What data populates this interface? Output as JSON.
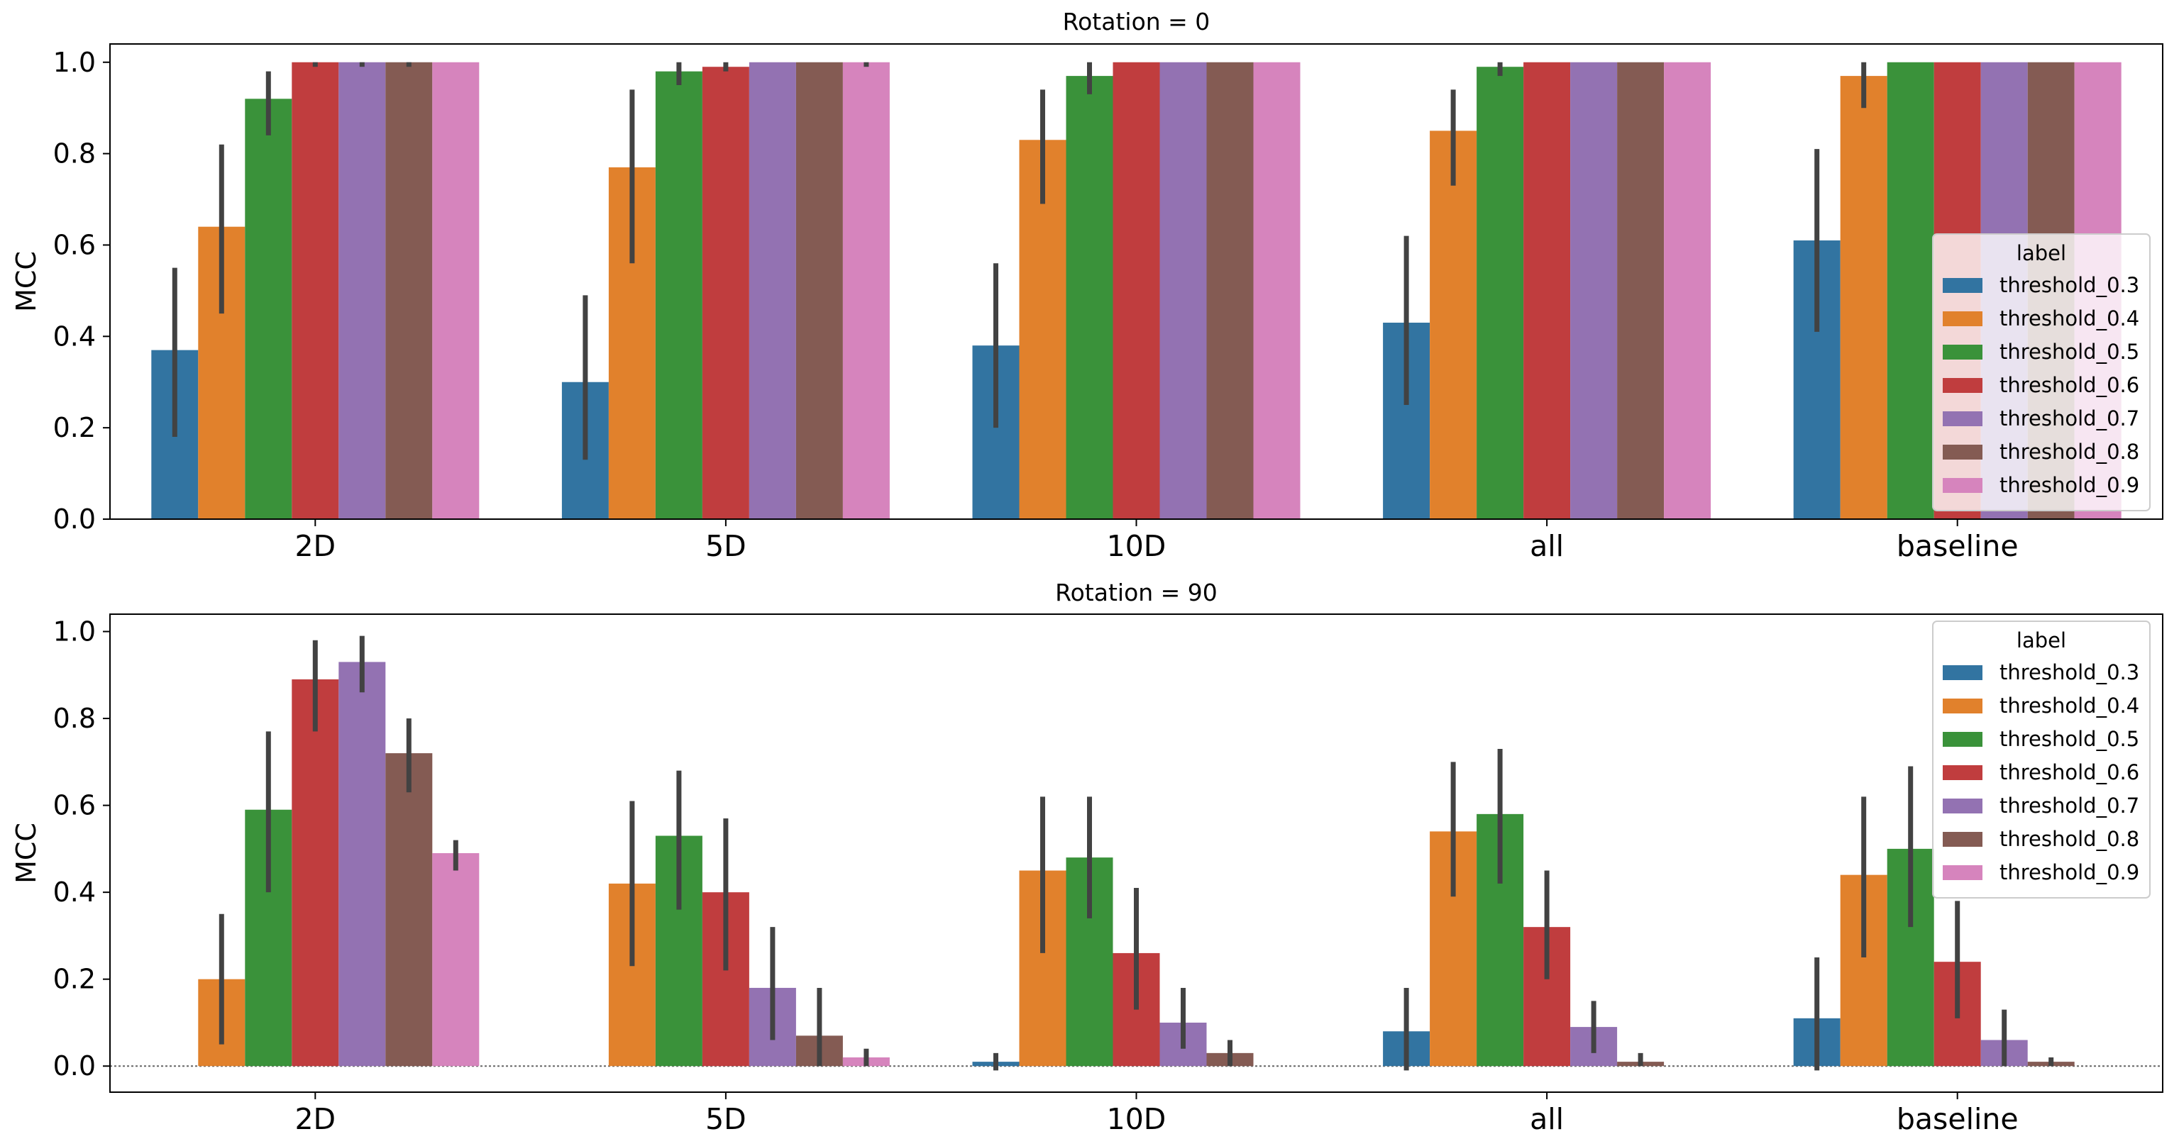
{
  "chart_data": [
    {
      "type": "bar",
      "title": "Rotation = 0",
      "xlabel": "",
      "ylabel": "MCC",
      "ylim": [
        0.0,
        1.04
      ],
      "yticks": [
        "0.0",
        "0.2",
        "0.4",
        "0.6",
        "0.8",
        "1.0"
      ],
      "categories": [
        "2D",
        "5D",
        "10D",
        "all",
        "baseline"
      ],
      "legend": {
        "title": "label",
        "placement": "center-right"
      },
      "series": [
        {
          "name": "threshold_0.3",
          "values": [
            0.37,
            0.3,
            0.38,
            0.43,
            0.61
          ],
          "err_low": [
            0.18,
            0.13,
            0.2,
            0.25,
            0.41
          ],
          "err_high": [
            0.55,
            0.49,
            0.56,
            0.62,
            0.81
          ]
        },
        {
          "name": "threshold_0.4",
          "values": [
            0.64,
            0.77,
            0.83,
            0.85,
            0.97
          ],
          "err_low": [
            0.45,
            0.56,
            0.69,
            0.73,
            0.9
          ],
          "err_high": [
            0.82,
            0.94,
            0.94,
            0.94,
            1.0
          ]
        },
        {
          "name": "threshold_0.5",
          "values": [
            0.92,
            0.98,
            0.97,
            0.99,
            1.0
          ],
          "err_low": [
            0.84,
            0.95,
            0.93,
            0.97,
            1.0
          ],
          "err_high": [
            0.98,
            1.0,
            1.0,
            1.0,
            1.0
          ]
        },
        {
          "name": "threshold_0.6",
          "values": [
            1.0,
            0.99,
            1.0,
            1.0,
            1.0
          ],
          "err_low": [
            0.99,
            0.98,
            1.0,
            1.0,
            1.0
          ],
          "err_high": [
            1.0,
            1.0,
            1.0,
            1.0,
            1.0
          ]
        },
        {
          "name": "threshold_0.7",
          "values": [
            1.0,
            1.0,
            1.0,
            1.0,
            1.0
          ],
          "err_low": [
            0.99,
            1.0,
            1.0,
            1.0,
            1.0
          ],
          "err_high": [
            1.0,
            1.0,
            1.0,
            1.0,
            1.0
          ]
        },
        {
          "name": "threshold_0.8",
          "values": [
            1.0,
            1.0,
            1.0,
            1.0,
            1.0
          ],
          "err_low": [
            0.99,
            1.0,
            1.0,
            1.0,
            1.0
          ],
          "err_high": [
            1.0,
            1.0,
            1.0,
            1.0,
            1.0
          ]
        },
        {
          "name": "threshold_0.9",
          "values": [
            1.0,
            1.0,
            1.0,
            1.0,
            1.0
          ],
          "err_low": [
            1.0,
            0.99,
            1.0,
            1.0,
            1.0
          ],
          "err_high": [
            1.0,
            1.0,
            1.0,
            1.0,
            1.0
          ]
        }
      ]
    },
    {
      "type": "bar",
      "title": "Rotation = 90",
      "xlabel": "",
      "ylabel": "MCC",
      "ylim": [
        -0.06,
        1.04
      ],
      "yticks": [
        "0.0",
        "0.2",
        "0.4",
        "0.6",
        "0.8",
        "1.0"
      ],
      "zero_line": true,
      "categories": [
        "2D",
        "5D",
        "10D",
        "all",
        "baseline"
      ],
      "legend": {
        "title": "label",
        "placement": "top-right"
      },
      "series": [
        {
          "name": "threshold_0.3",
          "values": [
            0.0,
            0.0,
            0.01,
            0.08,
            0.11
          ],
          "err_low": [
            0.0,
            0.0,
            -0.01,
            -0.01,
            -0.01
          ],
          "err_high": [
            0.0,
            0.0,
            0.03,
            0.18,
            0.25
          ]
        },
        {
          "name": "threshold_0.4",
          "values": [
            0.2,
            0.42,
            0.45,
            0.54,
            0.44
          ],
          "err_low": [
            0.05,
            0.23,
            0.26,
            0.39,
            0.25
          ],
          "err_high": [
            0.35,
            0.61,
            0.62,
            0.7,
            0.62
          ]
        },
        {
          "name": "threshold_0.5",
          "values": [
            0.59,
            0.53,
            0.48,
            0.58,
            0.5
          ],
          "err_low": [
            0.4,
            0.36,
            0.34,
            0.42,
            0.32
          ],
          "err_high": [
            0.77,
            0.68,
            0.62,
            0.73,
            0.69
          ]
        },
        {
          "name": "threshold_0.6",
          "values": [
            0.89,
            0.4,
            0.26,
            0.32,
            0.24
          ],
          "err_low": [
            0.77,
            0.22,
            0.13,
            0.2,
            0.11
          ],
          "err_high": [
            0.98,
            0.57,
            0.41,
            0.45,
            0.38
          ]
        },
        {
          "name": "threshold_0.7",
          "values": [
            0.93,
            0.18,
            0.1,
            0.09,
            0.06
          ],
          "err_low": [
            0.86,
            0.06,
            0.04,
            0.03,
            0.0
          ],
          "err_high": [
            0.99,
            0.32,
            0.18,
            0.15,
            0.13
          ]
        },
        {
          "name": "threshold_0.8",
          "values": [
            0.72,
            0.07,
            0.03,
            0.01,
            0.01
          ],
          "err_low": [
            0.63,
            0.0,
            0.0,
            0.0,
            0.0
          ],
          "err_high": [
            0.8,
            0.18,
            0.06,
            0.03,
            0.02
          ]
        },
        {
          "name": "threshold_0.9",
          "values": [
            0.49,
            0.02,
            0.0,
            0.0,
            0.0
          ],
          "err_low": [
            0.45,
            0.0,
            0.0,
            0.0,
            0.0
          ],
          "err_high": [
            0.52,
            0.04,
            0.0,
            0.0,
            0.0
          ]
        }
      ]
    }
  ],
  "colors": [
    "#3274a1",
    "#e1812c",
    "#3a923a",
    "#c03d3e",
    "#9372b2",
    "#845b53",
    "#d684bd"
  ],
  "error_color": "#424242",
  "zero_line_color": "#666666"
}
